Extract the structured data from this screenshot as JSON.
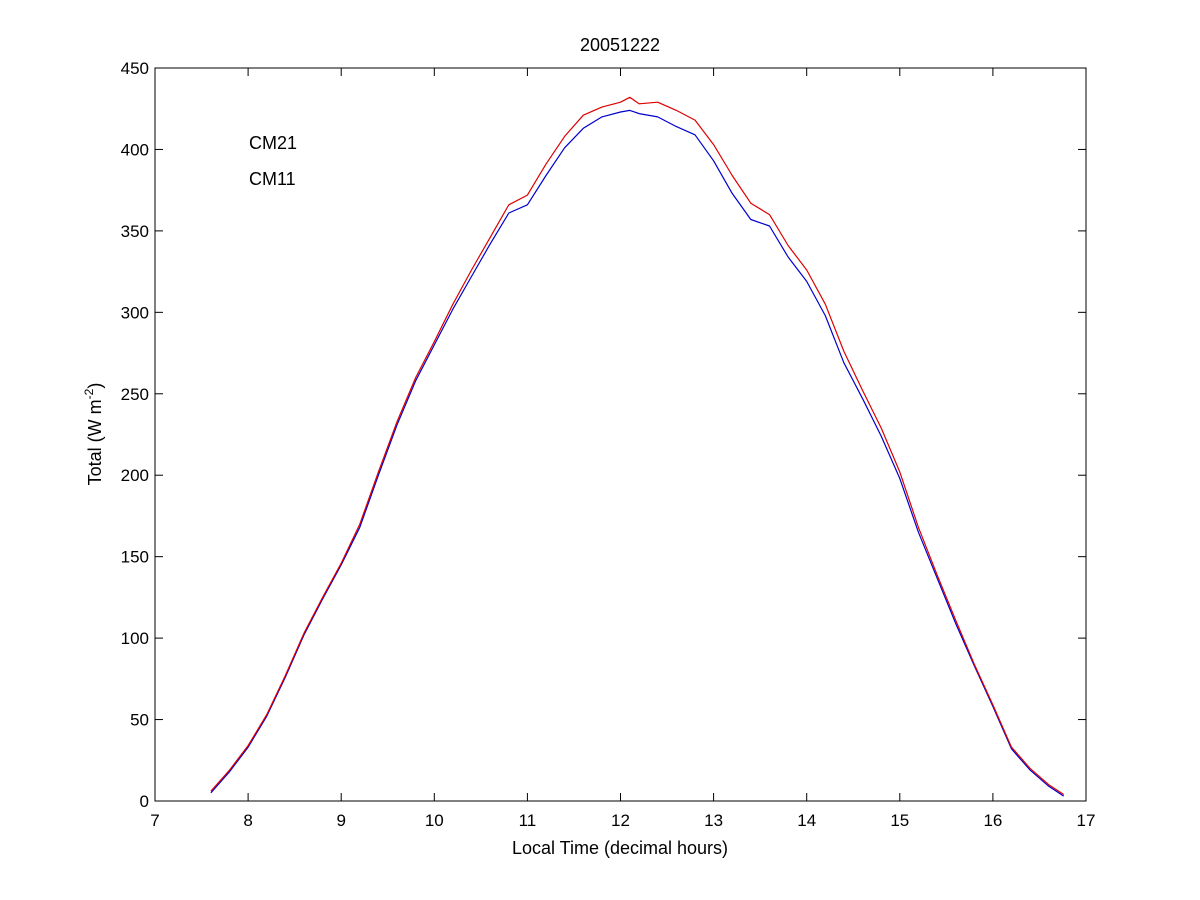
{
  "chart_data": {
    "type": "line",
    "title": "20051222",
    "xlabel": "Local Time (decimal hours)",
    "ylabel": {
      "text": "Total (W m",
      "superscript": "-2",
      "suffix": ")"
    },
    "xlim": [
      7,
      17
    ],
    "ylim": [
      0,
      450
    ],
    "xticks": [
      7,
      8,
      9,
      10,
      11,
      12,
      13,
      14,
      15,
      16,
      17
    ],
    "yticks": [
      0,
      50,
      100,
      150,
      200,
      250,
      300,
      350,
      400,
      450
    ],
    "grid": false,
    "legend_placement": "top-left",
    "series": [
      {
        "name": "CM21",
        "color": "#0000cc",
        "x": [
          7.6,
          7.8,
          8.0,
          8.2,
          8.4,
          8.6,
          8.8,
          9.0,
          9.2,
          9.4,
          9.6,
          9.8,
          10.0,
          10.2,
          10.4,
          10.6,
          10.8,
          11.0,
          11.2,
          11.4,
          11.6,
          11.8,
          12.0,
          12.1,
          12.2,
          12.4,
          12.6,
          12.8,
          13.0,
          13.2,
          13.4,
          13.6,
          13.8,
          14.0,
          14.2,
          14.4,
          14.6,
          14.8,
          15.0,
          15.2,
          15.4,
          15.6,
          15.8,
          16.0,
          16.2,
          16.4,
          16.6,
          16.76
        ],
        "values": [
          5,
          18,
          33,
          52,
          76,
          102,
          124,
          145,
          168,
          200,
          231,
          258,
          280,
          302,
          322,
          342,
          361,
          366,
          384,
          401,
          413,
          420,
          423,
          424,
          422,
          420,
          414,
          409,
          393,
          373,
          357,
          353,
          334,
          319,
          298,
          269,
          247,
          224,
          198,
          165,
          137,
          109,
          83,
          58,
          32,
          19,
          9,
          3
        ]
      },
      {
        "name": "CM11",
        "color": "#dd0000",
        "x": [
          7.6,
          7.8,
          8.0,
          8.2,
          8.4,
          8.6,
          8.8,
          9.0,
          9.2,
          9.4,
          9.6,
          9.8,
          10.0,
          10.2,
          10.4,
          10.6,
          10.8,
          11.0,
          11.2,
          11.4,
          11.6,
          11.8,
          12.0,
          12.1,
          12.2,
          12.4,
          12.6,
          12.8,
          13.0,
          13.2,
          13.4,
          13.6,
          13.8,
          14.0,
          14.2,
          14.4,
          14.6,
          14.8,
          15.0,
          15.2,
          15.4,
          15.6,
          15.8,
          16.0,
          16.2,
          16.4,
          16.6,
          16.76
        ],
        "values": [
          6,
          19,
          34,
          53,
          77,
          103,
          125,
          146,
          170,
          202,
          233,
          260,
          282,
          305,
          326,
          346,
          366,
          372,
          391,
          408,
          421,
          426,
          429,
          432,
          428,
          429,
          424,
          418,
          403,
          384,
          367,
          360,
          341,
          326,
          305,
          276,
          252,
          229,
          202,
          168,
          139,
          111,
          84,
          59,
          33,
          20,
          10,
          4
        ]
      }
    ]
  }
}
